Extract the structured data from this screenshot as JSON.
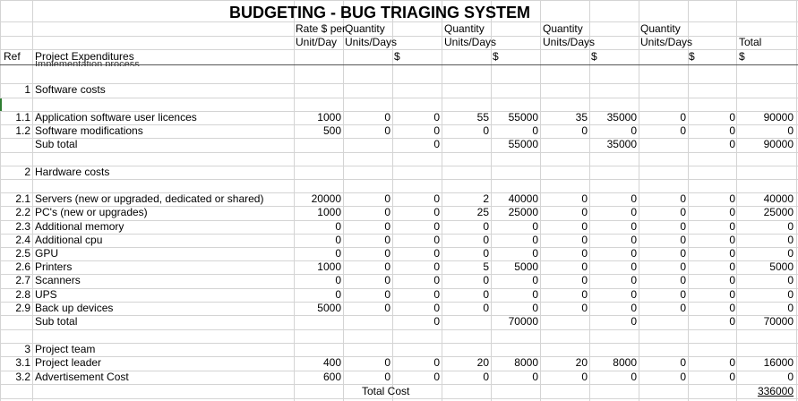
{
  "sheet": {
    "title": "BUDGETING - BUG TRIAGING SYSTEM",
    "headers": {
      "rate_line1": "Rate $ per",
      "rate_line2": "Unit/Day",
      "q1_line1": "Quantity",
      "q1_line2": "Units/Days",
      "q1_dollar": "$",
      "q2_line1": "Quantity",
      "q2_line2": "Units/Days",
      "q2_dollar": "$",
      "q3_line1": "Quantity",
      "q3_line2": "Units/Days",
      "q3_dollar": "$",
      "q4_line1": "Quantity",
      "q4_line2": "Units/Days",
      "q4_dollar": "$",
      "total_line1": "Total",
      "total_line2": "$",
      "ref": "Ref",
      "project_expenditures": "Project Expenditures",
      "clipped_text": "Implementation process"
    },
    "rows": [
      {
        "ref": "1",
        "label": "Software costs",
        "vals": [
          "",
          "",
          "",
          "",
          "",
          "",
          "",
          "",
          "",
          ""
        ]
      },
      {
        "ref": "1.1",
        "label": "Application software user licences",
        "vals": [
          "1000",
          "0",
          "0",
          "55",
          "55000",
          "35",
          "35000",
          "0",
          "0",
          "90000"
        ]
      },
      {
        "ref": "1.2",
        "label": "Software modifications",
        "vals": [
          "500",
          "0",
          "0",
          "0",
          "0",
          "0",
          "0",
          "0",
          "0",
          "0"
        ]
      },
      {
        "ref": "",
        "label": "Sub total",
        "vals": [
          "",
          "",
          "0",
          "",
          "55000",
          "",
          "35000",
          "",
          "0",
          "90000"
        ]
      },
      {
        "ref": "2",
        "label": "Hardware costs",
        "vals": [
          "",
          "",
          "",
          "",
          "",
          "",
          "",
          "",
          "",
          ""
        ]
      },
      {
        "ref": "2.1",
        "label": "Servers (new or upgraded, dedicated or shared)",
        "vals": [
          "20000",
          "0",
          "0",
          "2",
          "40000",
          "0",
          "0",
          "0",
          "0",
          "40000"
        ]
      },
      {
        "ref": "2.2",
        "label": "PC's (new or upgrades)",
        "vals": [
          "1000",
          "0",
          "0",
          "25",
          "25000",
          "0",
          "0",
          "0",
          "0",
          "25000"
        ]
      },
      {
        "ref": "2.3",
        "label": "Additional memory",
        "vals": [
          "0",
          "0",
          "0",
          "0",
          "0",
          "0",
          "0",
          "0",
          "0",
          "0"
        ]
      },
      {
        "ref": "2.4",
        "label": "Additional cpu",
        "vals": [
          "0",
          "0",
          "0",
          "0",
          "0",
          "0",
          "0",
          "0",
          "0",
          "0"
        ]
      },
      {
        "ref": "2.5",
        "label": "GPU",
        "vals": [
          "0",
          "0",
          "0",
          "0",
          "0",
          "0",
          "0",
          "0",
          "0",
          "0"
        ]
      },
      {
        "ref": "2.6",
        "label": "Printers",
        "vals": [
          "1000",
          "0",
          "0",
          "5",
          "5000",
          "0",
          "0",
          "0",
          "0",
          "5000"
        ]
      },
      {
        "ref": "2.7",
        "label": "Scanners",
        "vals": [
          "0",
          "0",
          "0",
          "0",
          "0",
          "0",
          "0",
          "0",
          "0",
          "0"
        ]
      },
      {
        "ref": "2.8",
        "label": "UPS",
        "vals": [
          "0",
          "0",
          "0",
          "0",
          "0",
          "0",
          "0",
          "0",
          "0",
          "0"
        ]
      },
      {
        "ref": "2.9",
        "label": "Back up devices",
        "vals": [
          "5000",
          "0",
          "0",
          "0",
          "0",
          "0",
          "0",
          "0",
          "0",
          "0"
        ]
      },
      {
        "ref": "",
        "label": "Sub total",
        "vals": [
          "",
          "",
          "0",
          "",
          "70000",
          "",
          "0",
          "",
          "0",
          "70000"
        ]
      },
      {
        "ref": "3",
        "label": "Project team",
        "vals": [
          "",
          "",
          "",
          "",
          "",
          "",
          "",
          "",
          "",
          ""
        ]
      },
      {
        "ref": "3.1",
        "label": "Project leader",
        "vals": [
          "400",
          "0",
          "0",
          "20",
          "8000",
          "20",
          "8000",
          "0",
          "0",
          "16000"
        ]
      },
      {
        "ref": "3.2",
        "label": "Advertisement Cost",
        "vals": [
          "600",
          "0",
          "0",
          "0",
          "0",
          "0",
          "0",
          "0",
          "0",
          "0"
        ]
      }
    ],
    "total_label": "Total Cost",
    "total_value": "336000"
  }
}
